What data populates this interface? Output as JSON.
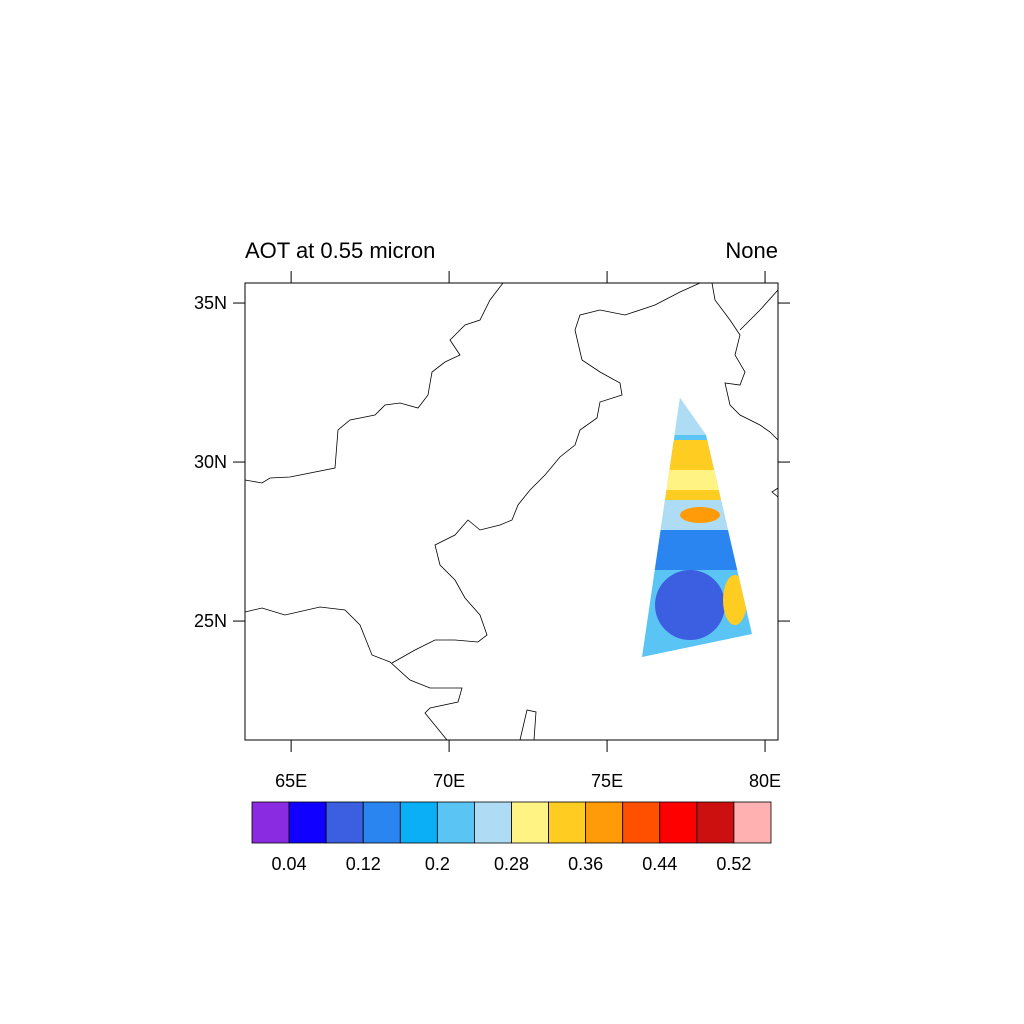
{
  "chart_data": {
    "type": "map",
    "title": "AOT at 0.55 micron",
    "right_title": "None",
    "xlim": [
      63.54,
      80.41
    ],
    "ylim": [
      21.26,
      35.63
    ],
    "xticks": [
      {
        "value": 65,
        "label": "65E"
      },
      {
        "value": 70,
        "label": "70E"
      },
      {
        "value": 75,
        "label": "75E"
      },
      {
        "value": 80,
        "label": "80E"
      }
    ],
    "yticks": [
      {
        "value": 25,
        "label": "25N"
      },
      {
        "value": 30,
        "label": "30N"
      },
      {
        "value": 35,
        "label": "35N"
      }
    ],
    "colorbar": {
      "clim": [
        0,
        0.56
      ],
      "colors": [
        "#8a2be2",
        "#0f00ff",
        "#3b5fe0",
        "#2a85f0",
        "#0aaff5",
        "#5ac4f5",
        "#afdcf5",
        "#fff383",
        "#ffcc22",
        "#ff9a08",
        "#ff5000",
        "#ff0000",
        "#cc1010",
        "#ffb0b0"
      ],
      "ticks": [
        0.04,
        0.12,
        0.2,
        0.28,
        0.36,
        0.44,
        0.52
      ]
    }
  }
}
